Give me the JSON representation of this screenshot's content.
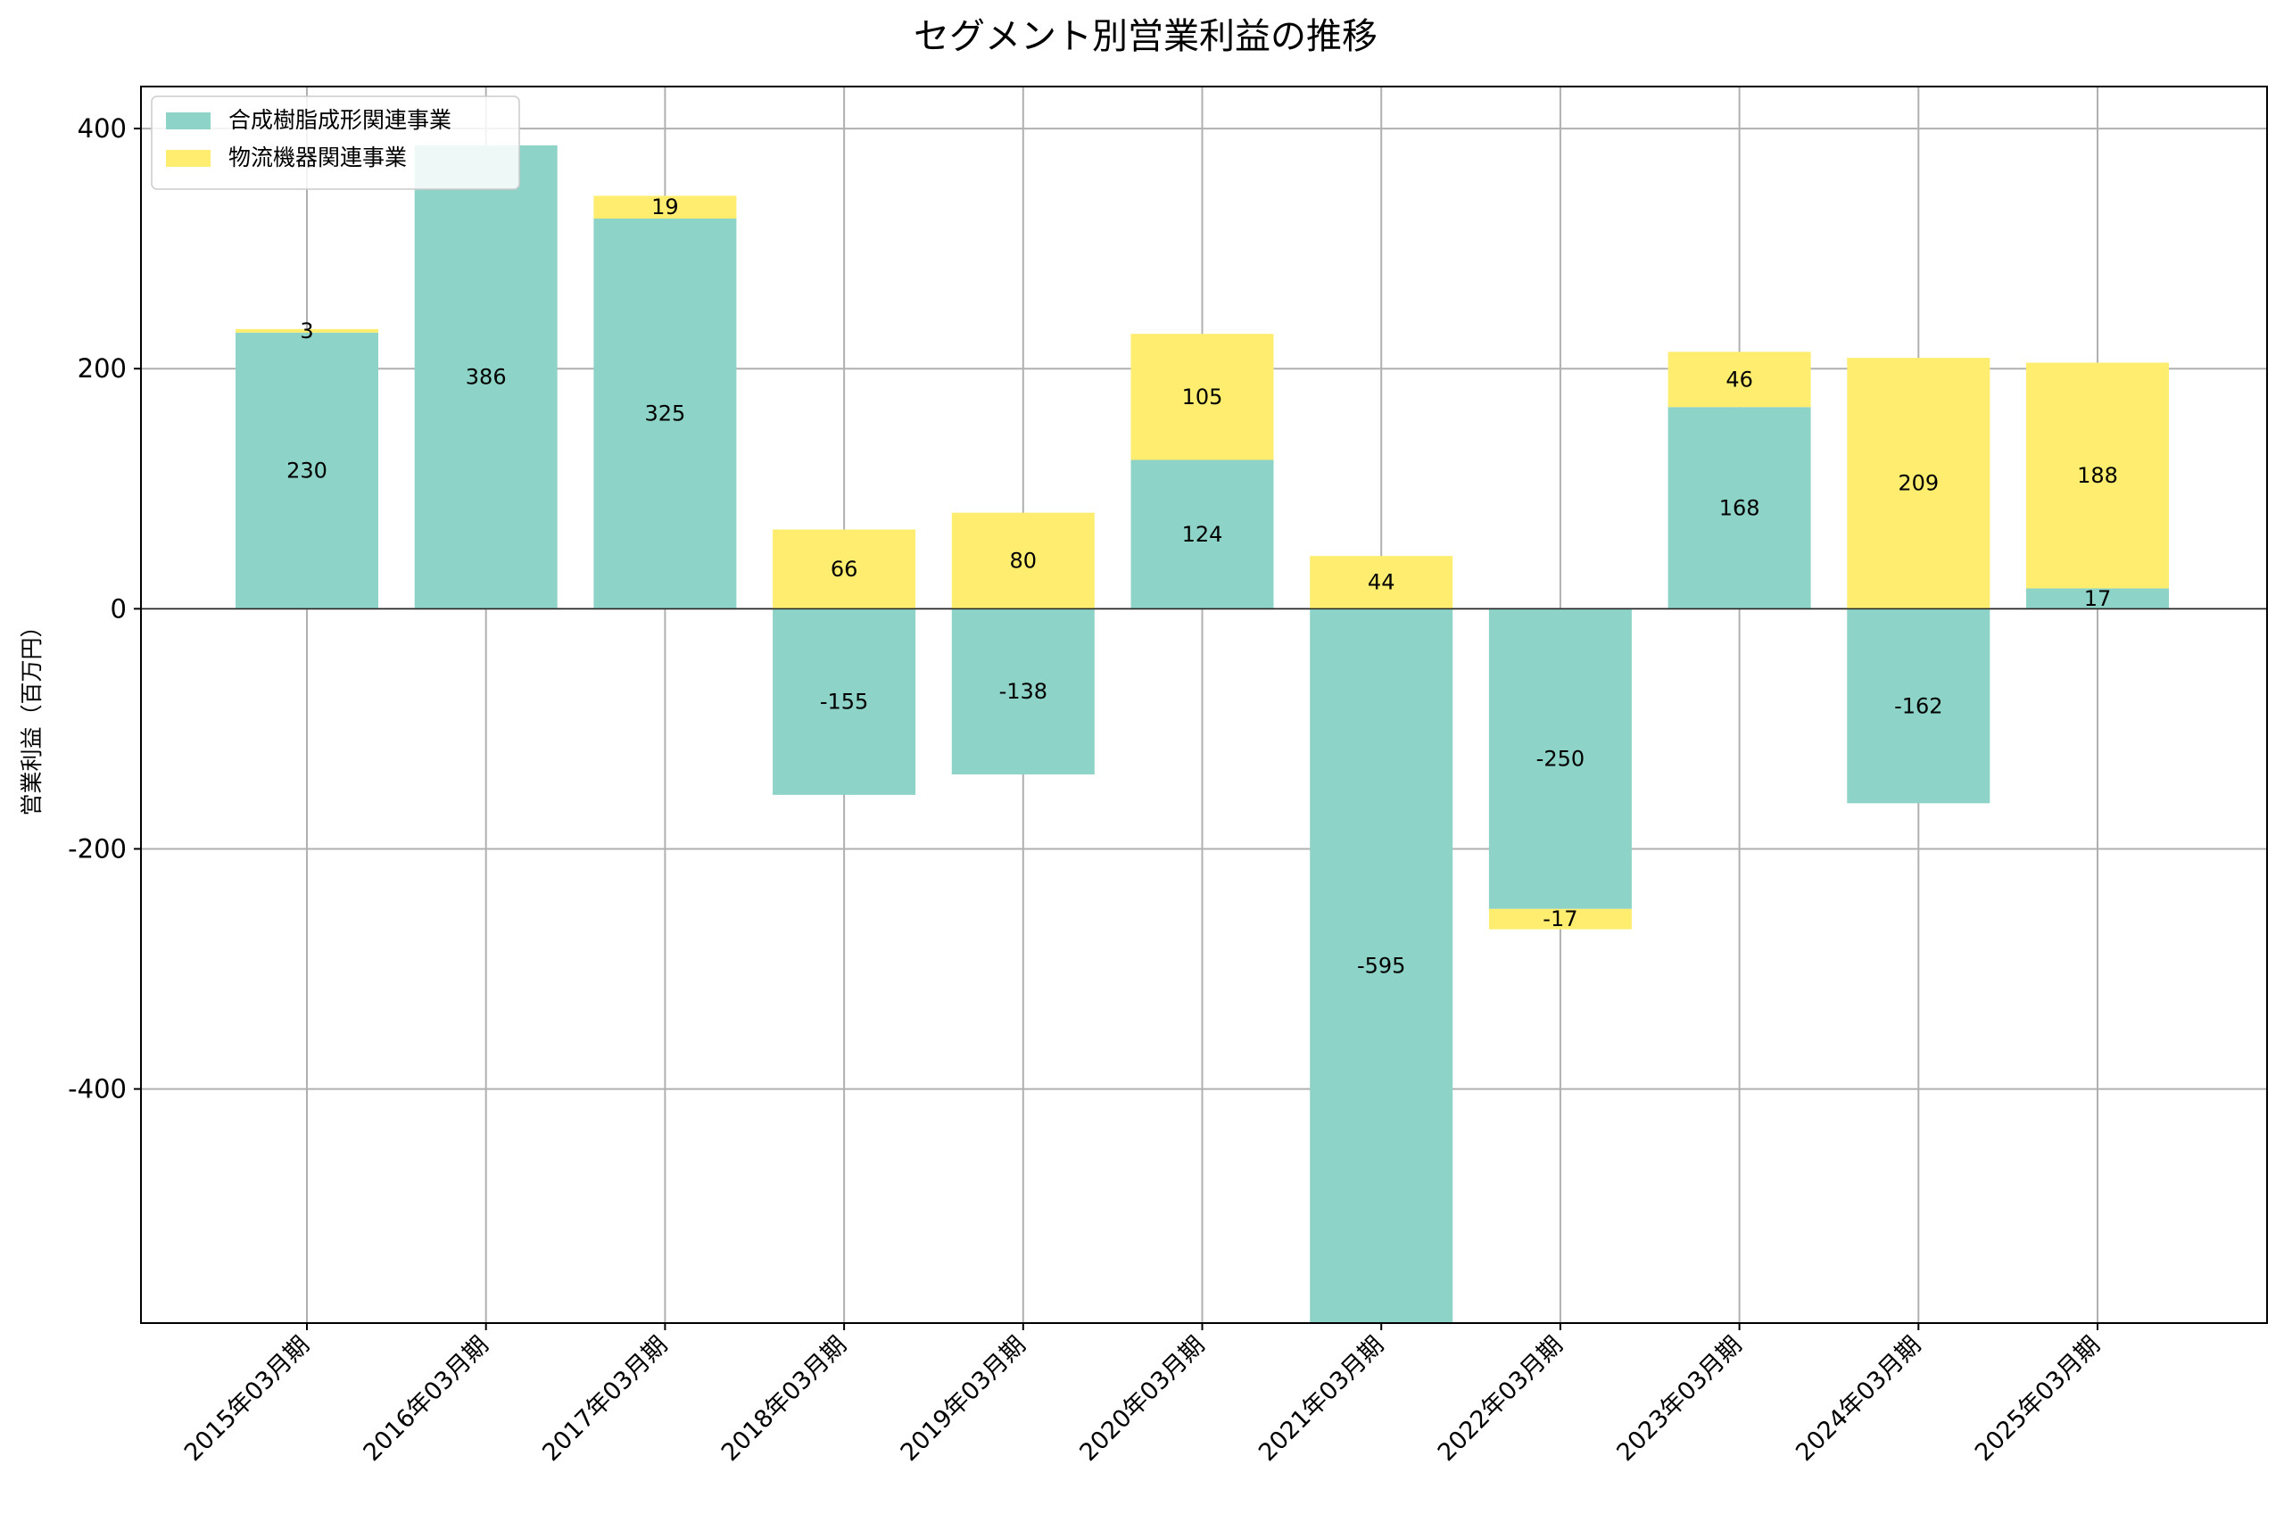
{
  "chart_data": {
    "type": "bar",
    "stacked": true,
    "title": "セグメント別営業利益の推移",
    "xlabel": "",
    "ylabel": "営業利益（百万円）",
    "ylim": [
      -595,
      435
    ],
    "yticks": [
      -400,
      -200,
      0,
      200,
      400
    ],
    "grid": true,
    "legend_position": "top-left",
    "categories": [
      "2015年03月期",
      "2016年03月期",
      "2017年03月期",
      "2018年03月期",
      "2019年03月期",
      "2020年03月期",
      "2021年03月期",
      "2022年03月期",
      "2023年03月期",
      "2024年03月期",
      "2025年03月期"
    ],
    "series": [
      {
        "name": "合成樹脂成形関連事業",
        "color": "#8dd3c7",
        "values": [
          230,
          386,
          325,
          -155,
          -138,
          124,
          -595,
          -250,
          168,
          -162,
          17
        ]
      },
      {
        "name": "物流機器関連事業",
        "color": "#ffed6f",
        "values": [
          3,
          0,
          19,
          66,
          80,
          105,
          44,
          -17,
          46,
          209,
          188
        ]
      }
    ],
    "data_labels": [
      [
        "230",
        "386",
        "325",
        "-155",
        "-138",
        "124",
        "-595",
        "-250",
        "168",
        "-162",
        "17"
      ],
      [
        "3",
        "",
        "19",
        "66",
        "80",
        "105",
        "44",
        "-17",
        "46",
        "209",
        "188"
      ]
    ]
  }
}
